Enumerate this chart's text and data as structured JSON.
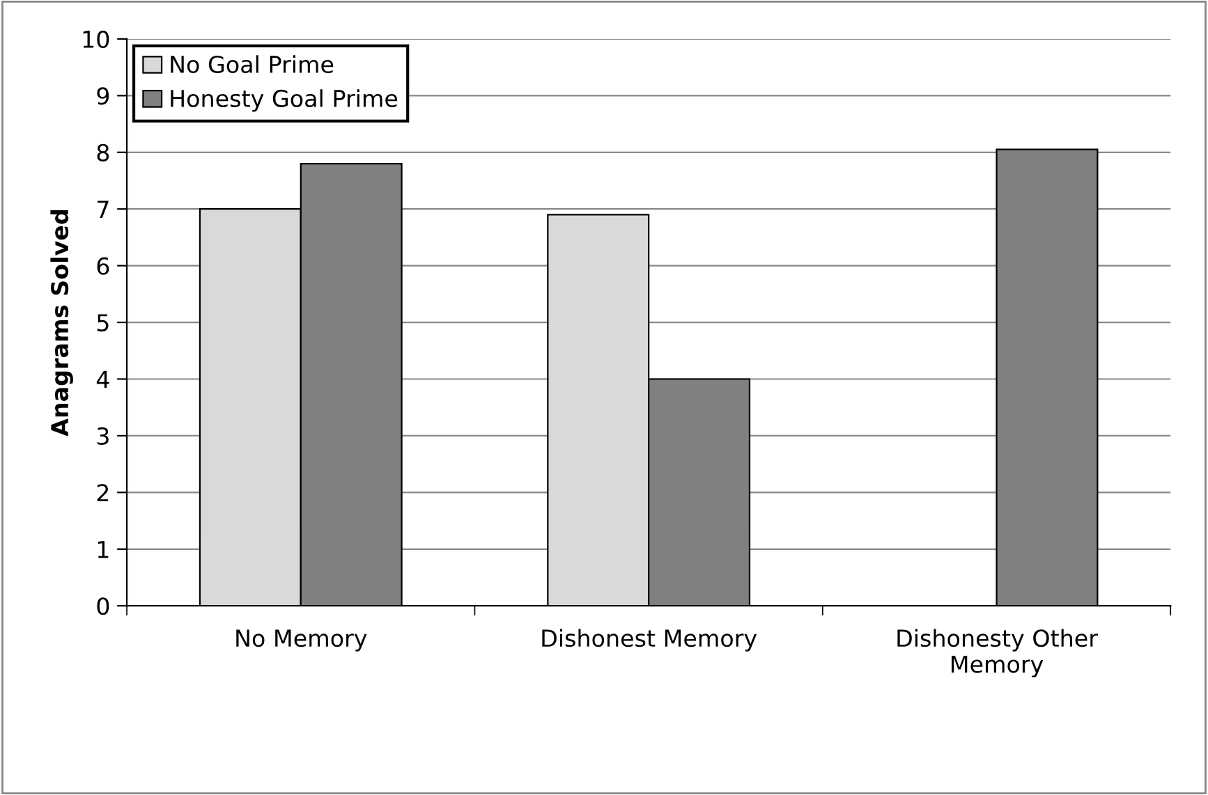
{
  "chart_data": {
    "type": "bar",
    "ylabel": "Anagrams Solved",
    "categories": [
      "No Memory",
      "Dishonest Memory",
      "Dishonesty Other\nMemory"
    ],
    "series": [
      {
        "name": "No Goal Prime",
        "color": "#d9d9d9",
        "values": [
          7.0,
          6.9,
          null
        ]
      },
      {
        "name": "Honesty Goal Prime",
        "color": "#808080",
        "values": [
          7.8,
          4.0,
          8.05
        ]
      }
    ],
    "ylim": [
      0,
      10
    ],
    "yticks": [
      0,
      1,
      2,
      3,
      4,
      5,
      6,
      7,
      8,
      9,
      10
    ],
    "grid": "y",
    "legend": "top left"
  }
}
